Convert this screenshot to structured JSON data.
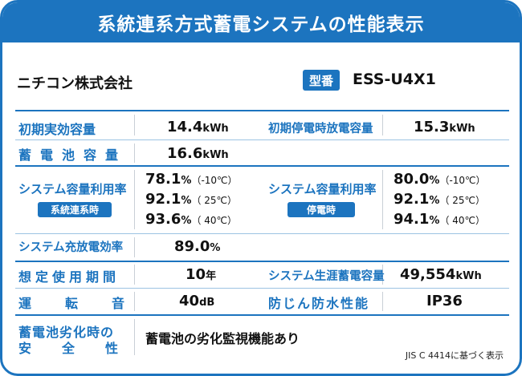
{
  "title": "系統連系方式蓄電システムの性能表示",
  "maker": "ニチコン株式会社",
  "model": {
    "tag": "型番",
    "value": "ESS-U4X1"
  },
  "rows": {
    "initial_capacity": {
      "label": "初期実効容量",
      "value": "14.4",
      "unit": "kWh"
    },
    "outage_capacity": {
      "label": "初期停電時放電容量",
      "value": "15.3",
      "unit": "kWh"
    },
    "storage_capacity": {
      "label": "蓄電池容量",
      "value": "16.6",
      "unit": "kWh"
    },
    "utilization_grid": {
      "label": "システム容量利用率",
      "badge": "系統連系時",
      "values": [
        {
          "value": "78.1",
          "unit": "%",
          "temp": "（-10℃）"
        },
        {
          "value": "92.1",
          "unit": "%",
          "temp": "（ 25℃）"
        },
        {
          "value": "93.6",
          "unit": "%",
          "temp": "（ 40℃）"
        }
      ]
    },
    "utilization_outage": {
      "label": "システム容量利用率",
      "badge": "停電時",
      "values": [
        {
          "value": "80.0",
          "unit": "%",
          "temp": "（-10℃）"
        },
        {
          "value": "92.1",
          "unit": "%",
          "temp": "（ 25℃）"
        },
        {
          "value": "94.1",
          "unit": "%",
          "temp": "（ 40℃）"
        }
      ]
    },
    "efficiency": {
      "label": "システム充放電効率",
      "value": "89.0",
      "unit": "%"
    },
    "lifetime": {
      "label": "想定使用期間",
      "value": "10",
      "unit": "年"
    },
    "lifetime_storage": {
      "label": "システム生涯蓄電容量",
      "value": "49,554",
      "unit": "kWh"
    },
    "noise": {
      "label": "運転音",
      "value": "40",
      "unit": "dB"
    },
    "waterproof": {
      "label": "防じん防水性能",
      "value": "IP36"
    },
    "safety": {
      "label_line1": "蓄電池劣化時の",
      "label_line2": "安全性",
      "value": "蓄電池の劣化監視機能あり"
    }
  },
  "note": "JIS C 4414に基づく表示",
  "colors": {
    "accent": "#1c74bf",
    "text": "#111111"
  }
}
